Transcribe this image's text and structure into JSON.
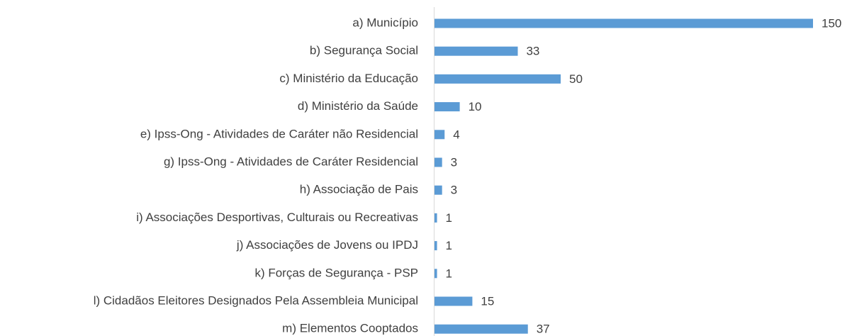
{
  "chart_data": {
    "type": "bar",
    "orientation": "horizontal",
    "categories": [
      "a) Município",
      "b) Segurança Social",
      "c) Ministério da Educação",
      "d) Ministério da Saúde",
      "e) Ipss-Ong - Atividades de Caráter não Residencial",
      "g) Ipss-Ong - Atividades de Caráter Residencial",
      "h) Associação de Pais",
      "i) Associações Desportivas, Culturais ou Recreativas",
      "j) Associações de Jovens ou IPDJ",
      "k) Forças de Segurança - PSP",
      "l) Cidadãos Eleitores Designados Pela Assembleia Municipal",
      "m) Elementos Cooptados"
    ],
    "values": [
      150,
      33,
      50,
      10,
      4,
      3,
      3,
      1,
      1,
      1,
      15,
      37
    ],
    "color": "#5b9bd5"
  }
}
